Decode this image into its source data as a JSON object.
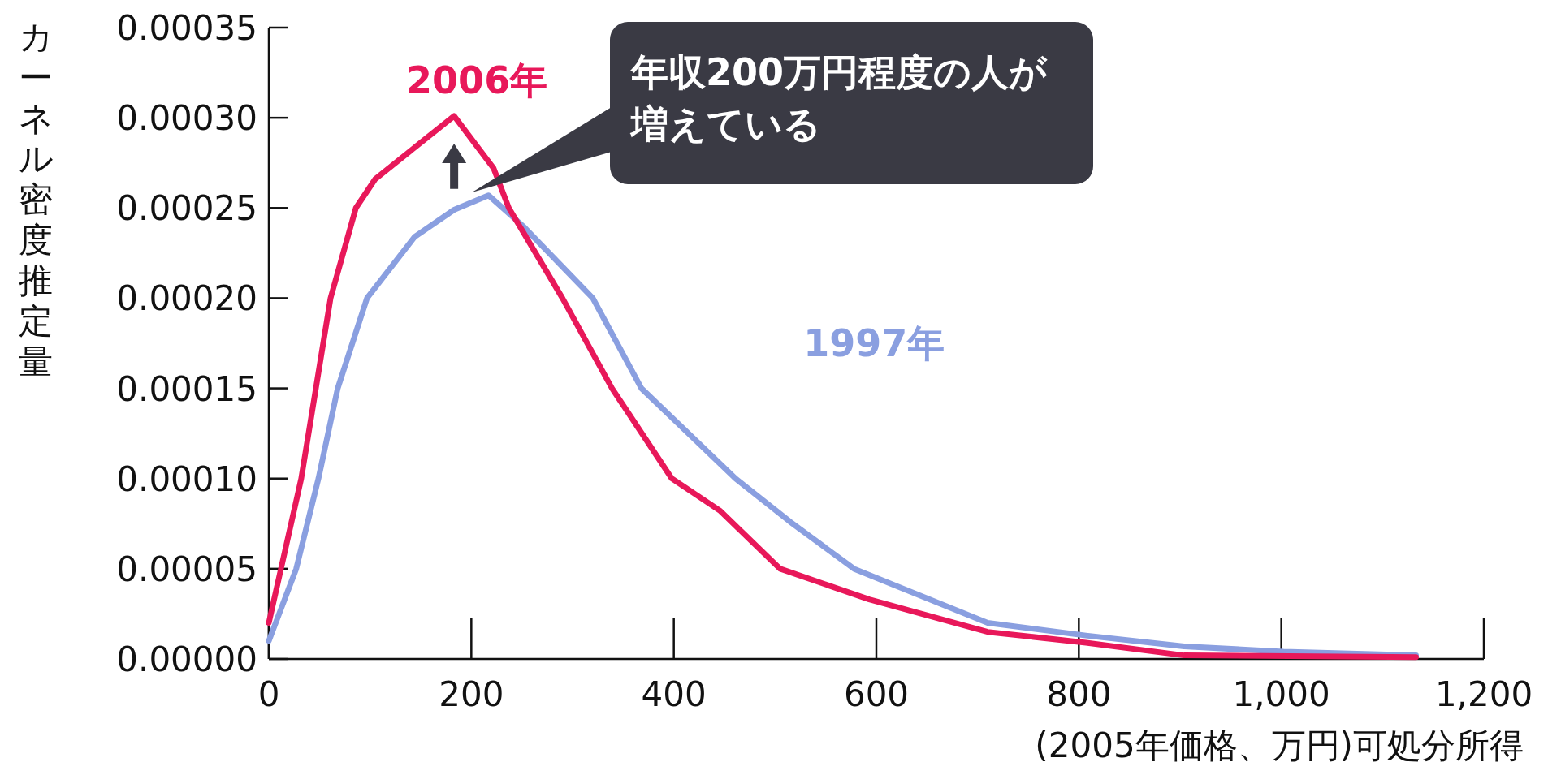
{
  "chart_data": {
    "type": "line",
    "xlabel": "(2005年価格、万円)可処分所得",
    "ylabel": "カーネル密度推定量",
    "annotations": [
      "年収200万円程度の人が増えている"
    ],
    "xlim": [
      0,
      1200
    ],
    "ylim": [
      0,
      0.00035
    ],
    "xticks": [
      {
        "value": 0,
        "label": "0"
      },
      {
        "value": 200,
        "label": "200"
      },
      {
        "value": 400,
        "label": "400"
      },
      {
        "value": 600,
        "label": "600"
      },
      {
        "value": 800,
        "label": "800"
      },
      {
        "value": 1000,
        "label": "1,000"
      },
      {
        "value": 1200,
        "label": "1,200"
      }
    ],
    "yticks": [
      {
        "value": 0,
        "label": "0.00000"
      },
      {
        "value": 5e-05,
        "label": "0.00005"
      },
      {
        "value": 0.0001,
        "label": "0.00010"
      },
      {
        "value": 0.00015,
        "label": "0.00015"
      },
      {
        "value": 0.0002,
        "label": "0.00020"
      },
      {
        "value": 0.00025,
        "label": "0.00025"
      },
      {
        "value": 0.0003,
        "label": "0.00030"
      },
      {
        "value": 0.00035,
        "label": "0.00035"
      }
    ],
    "grid": false,
    "legend": false,
    "series": [
      {
        "name": "1997年",
        "color": "#8a9fe0",
        "x": [
          0,
          27,
          49,
          68,
          97,
          144,
          183,
          217,
          251,
          320,
          368,
          461,
          515,
          578,
          710,
          807,
          904,
          1002,
          1133
        ],
        "values": [
          1e-05,
          5e-05,
          0.0001,
          0.00015,
          0.0002,
          0.000234,
          0.000249,
          0.000257,
          0.00024,
          0.0002,
          0.00015,
          0.0001,
          7.6e-05,
          5e-05,
          2e-05,
          1.3e-05,
          7e-06,
          4e-06,
          2e-06
        ]
      },
      {
        "name": "2006年",
        "color": "#e8185a",
        "x": [
          0,
          32,
          61,
          86,
          105,
          183,
          222,
          237,
          290,
          339,
          398,
          446,
          505,
          593,
          710,
          807,
          904,
          1133
        ],
        "values": [
          2e-05,
          0.0001,
          0.0002,
          0.00025,
          0.000266,
          0.000301,
          0.000272,
          0.00025,
          0.0002,
          0.00015,
          0.0001,
          8.2e-05,
          5e-05,
          3.3e-05,
          1.5e-05,
          9e-06,
          2e-06,
          1e-06
        ]
      }
    ]
  }
}
